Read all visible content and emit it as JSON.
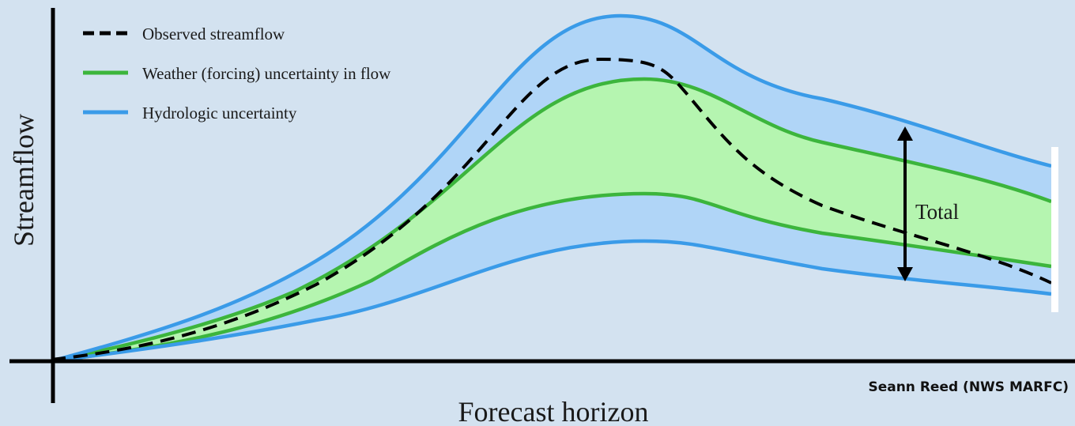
{
  "legend": {
    "observed": "Observed streamflow",
    "weather": "Weather (forcing) uncertainty in flow",
    "hydrologic": "Hydrologic uncertainty"
  },
  "axes": {
    "ylabel": "Streamflow",
    "xlabel": "Forecast horizon"
  },
  "annotation": {
    "total": "Total"
  },
  "credit": "Seann Reed (NWS MARFC)",
  "colors": {
    "background": "#d3e2f0",
    "hydrologic_line": "#3a9be8",
    "hydrologic_fill": "#b0d5f7",
    "weather_line": "#3cb53c",
    "weather_fill": "#b5f5b0",
    "observed_line": "#000000",
    "axis": "#000000"
  }
}
